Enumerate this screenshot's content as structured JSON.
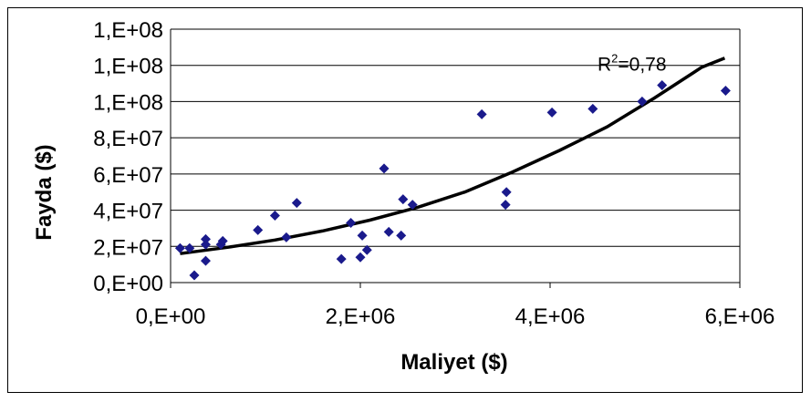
{
  "chart_data": {
    "type": "scatter",
    "xlabel": "Maliyet ($)",
    "ylabel": "Fayda ($)",
    "xlim": [
      0,
      6000000
    ],
    "ylim": [
      0,
      140000000
    ],
    "x_ticks": [
      0,
      2000000,
      4000000,
      6000000
    ],
    "x_tick_labels": [
      "0,E+00",
      "2,E+06",
      "4,E+06",
      "6,E+06"
    ],
    "y_ticks": [
      0,
      20000000,
      40000000,
      60000000,
      80000000,
      100000000,
      120000000,
      140000000
    ],
    "y_tick_labels": [
      "0,E+00",
      "2,E+07",
      "4,E+07",
      "6,E+07",
      "8,E+07",
      "1,E+08",
      "1,E+08",
      "1,E+08"
    ],
    "grid": "horizontal",
    "marker_color": "#1a1a8c",
    "trend_color": "#000000",
    "annotation": {
      "prefix": "R",
      "superscript": "2",
      "suffix": "=0,78",
      "x": 4500000,
      "y": 117000000
    },
    "points": [
      {
        "x": 100000,
        "y": 19000000
      },
      {
        "x": 200000,
        "y": 19000000
      },
      {
        "x": 250000,
        "y": 4000000
      },
      {
        "x": 370000,
        "y": 12000000
      },
      {
        "x": 370000,
        "y": 21000000
      },
      {
        "x": 370000,
        "y": 24000000
      },
      {
        "x": 530000,
        "y": 21000000
      },
      {
        "x": 550000,
        "y": 23000000
      },
      {
        "x": 920000,
        "y": 29000000
      },
      {
        "x": 1100000,
        "y": 37000000
      },
      {
        "x": 1220000,
        "y": 25000000
      },
      {
        "x": 1330000,
        "y": 44000000
      },
      {
        "x": 1800000,
        "y": 13000000
      },
      {
        "x": 1900000,
        "y": 33000000
      },
      {
        "x": 2000000,
        "y": 14000000
      },
      {
        "x": 2020000,
        "y": 26000000
      },
      {
        "x": 2070000,
        "y": 18000000
      },
      {
        "x": 2250000,
        "y": 63000000
      },
      {
        "x": 2300000,
        "y": 28000000
      },
      {
        "x": 2430000,
        "y": 26000000
      },
      {
        "x": 2450000,
        "y": 46000000
      },
      {
        "x": 2550000,
        "y": 43000000
      },
      {
        "x": 3280000,
        "y": 93000000
      },
      {
        "x": 3530000,
        "y": 43000000
      },
      {
        "x": 3540000,
        "y": 50000000
      },
      {
        "x": 4020000,
        "y": 94000000
      },
      {
        "x": 4450000,
        "y": 96000000
      },
      {
        "x": 4970000,
        "y": 100000000
      },
      {
        "x": 5180000,
        "y": 109000000
      },
      {
        "x": 5850000,
        "y": 106000000
      }
    ],
    "trend": [
      {
        "x": 100000,
        "y": 16000000
      },
      {
        "x": 600000,
        "y": 19500000
      },
      {
        "x": 1100000,
        "y": 23500000
      },
      {
        "x": 1600000,
        "y": 28500000
      },
      {
        "x": 2100000,
        "y": 34500000
      },
      {
        "x": 2600000,
        "y": 41500000
      },
      {
        "x": 3100000,
        "y": 50000000
      },
      {
        "x": 3600000,
        "y": 61000000
      },
      {
        "x": 4100000,
        "y": 73000000
      },
      {
        "x": 4600000,
        "y": 86000000
      },
      {
        "x": 5100000,
        "y": 102000000
      },
      {
        "x": 5600000,
        "y": 119000000
      },
      {
        "x": 5840000,
        "y": 124000000
      }
    ]
  }
}
